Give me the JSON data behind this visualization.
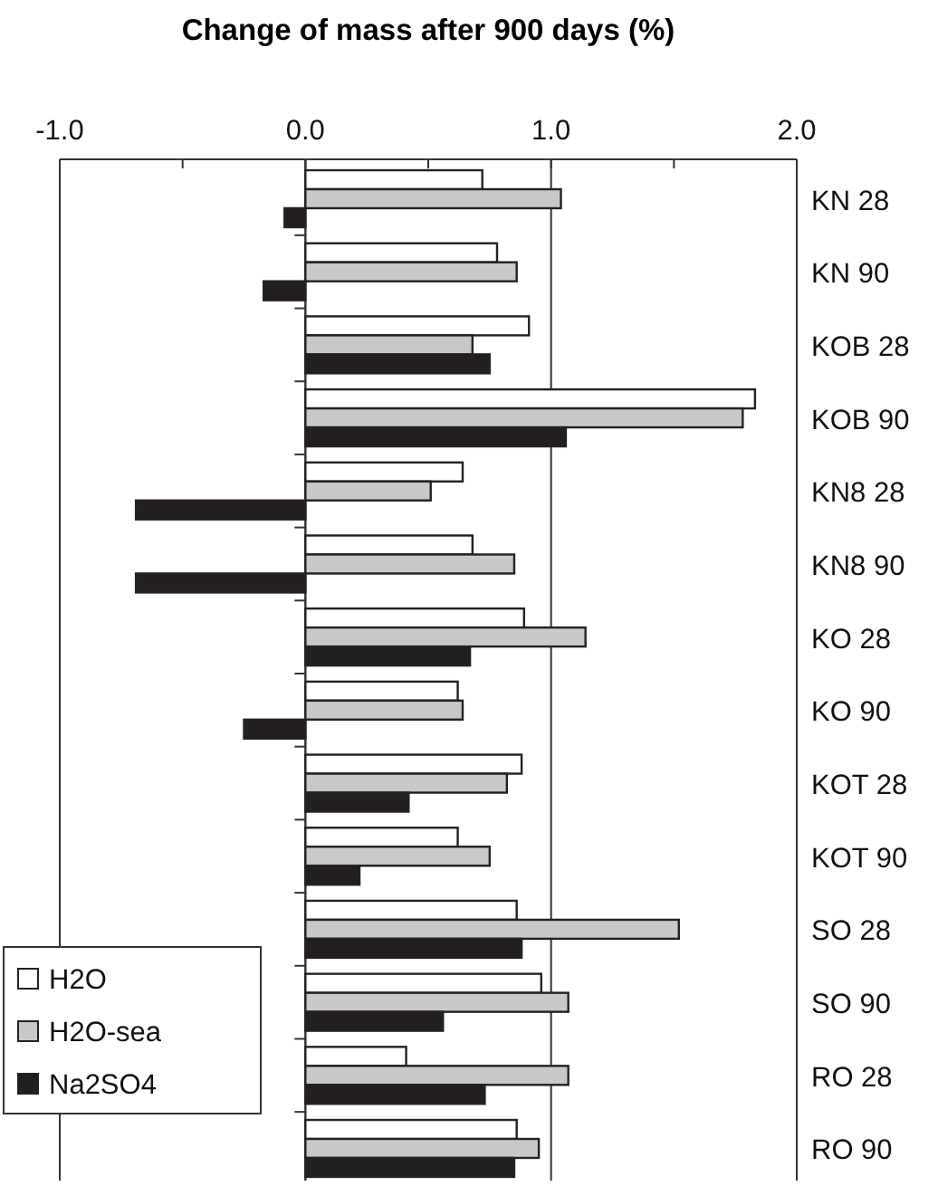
{
  "chart_data": {
    "type": "bar",
    "orientation": "horizontal",
    "xlabel": "Change of mass after 900 days (%)",
    "categories": [
      "KN 28",
      "KN 90",
      "KOB 28",
      "KOB 90",
      "KN8 28",
      "KN8 90",
      "KO 28",
      "KO 90",
      "KOT 28",
      "KOT 90",
      "SO 28",
      "SO 90",
      "RO 28",
      "RO 90"
    ],
    "series": [
      {
        "name": "H2O",
        "color": "#ffffff",
        "values": [
          0.72,
          0.78,
          0.91,
          1.83,
          0.64,
          0.68,
          0.89,
          0.62,
          0.88,
          0.62,
          0.86,
          0.96,
          0.41,
          0.86
        ]
      },
      {
        "name": "H2O-sea",
        "color": "#c8c8c8",
        "values": [
          1.04,
          0.86,
          0.68,
          1.78,
          0.51,
          0.85,
          1.14,
          0.64,
          0.82,
          0.75,
          1.52,
          1.07,
          1.07,
          0.95
        ]
      },
      {
        "name": "Na2SO4",
        "color": "#231f20",
        "values": [
          -0.085,
          -0.17,
          0.75,
          1.06,
          -0.69,
          -0.69,
          0.67,
          -0.25,
          0.42,
          0.22,
          0.88,
          0.56,
          0.73,
          0.85
        ]
      }
    ],
    "xlim": [
      -1,
      2
    ],
    "xticks": [
      {
        "value": -1,
        "label": "-1.0"
      },
      {
        "value": -0.5,
        "label": null
      },
      {
        "value": 0,
        "label": "0.0"
      },
      {
        "value": 0.5,
        "label": null
      },
      {
        "value": 1,
        "label": "1.0"
      },
      {
        "value": 1.5,
        "label": null
      },
      {
        "value": 2,
        "label": "2.0"
      }
    ],
    "grid": "x",
    "legend": "bottom left"
  }
}
